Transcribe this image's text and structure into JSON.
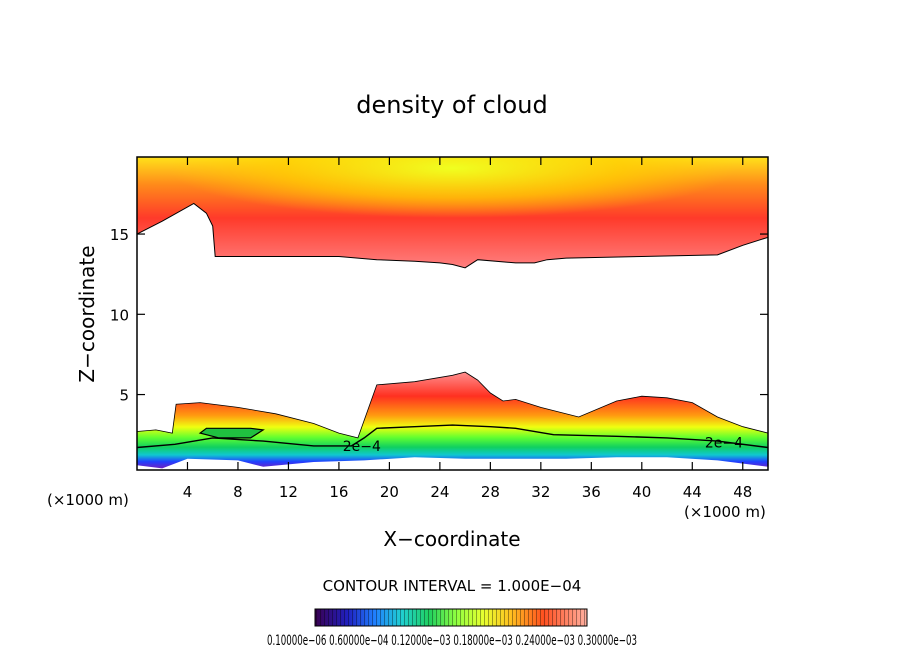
{
  "chart_data": {
    "type": "heatmap",
    "title": "density of cloud",
    "xlabel": "X−coordinate",
    "ylabel": "Z−coordinate",
    "x_unit_left": "(×1000 m)",
    "x_unit_right": "(×1000 m)",
    "xlim": [
      0,
      50
    ],
    "ylim": [
      0.3,
      19.8
    ],
    "x_ticks": [
      4,
      8,
      12,
      16,
      20,
      24,
      28,
      32,
      36,
      40,
      44,
      48
    ],
    "y_ticks": [
      5,
      10,
      15
    ],
    "contour_interval_text": "CONTOUR INTERVAL = 1.000E−04",
    "contour_labels": [
      {
        "text": "2e−4",
        "x": 16.3,
        "y": 1.8
      },
      {
        "text": "2e−4",
        "x": 45.0,
        "y": 2.0
      }
    ],
    "colorbar_labels_text": "0.10000e−06   0.60000e−04   0.12000e−03   0.18000e−03   0.24000e−03   0.30000e−03",
    "upper_cloud": {
      "top": [
        [
          0,
          19.8
        ],
        [
          50,
          19.8
        ]
      ],
      "bottom": [
        [
          0,
          15
        ],
        [
          2,
          15.8
        ],
        [
          4.5,
          16.9
        ],
        [
          5.5,
          16.3
        ],
        [
          6,
          15.5
        ],
        [
          6.2,
          13.6
        ],
        [
          10,
          13.6
        ],
        [
          16,
          13.6
        ],
        [
          19,
          13.4
        ],
        [
          22,
          13.3
        ],
        [
          24,
          13.2
        ],
        [
          25,
          13.1
        ],
        [
          26,
          12.9
        ],
        [
          27,
          13.4
        ],
        [
          30,
          13.2
        ],
        [
          31.5,
          13.2
        ],
        [
          32.5,
          13.4
        ],
        [
          34,
          13.5
        ],
        [
          40,
          13.6
        ],
        [
          46,
          13.7
        ],
        [
          48,
          14.3
        ],
        [
          50,
          14.8
        ]
      ]
    },
    "lower_cloud": {
      "top": [
        [
          0,
          2.7
        ],
        [
          1.5,
          2.8
        ],
        [
          2.8,
          2.6
        ],
        [
          3.1,
          4.4
        ],
        [
          5,
          4.5
        ],
        [
          8,
          4.2
        ],
        [
          11,
          3.8
        ],
        [
          14,
          3.2
        ],
        [
          16,
          2.6
        ],
        [
          17.5,
          2.3
        ],
        [
          19,
          5.6
        ],
        [
          22,
          5.8
        ],
        [
          25,
          6.2
        ],
        [
          26,
          6.4
        ],
        [
          27,
          5.9
        ],
        [
          28,
          5.1
        ],
        [
          29,
          4.6
        ],
        [
          30,
          4.7
        ],
        [
          32,
          4.2
        ],
        [
          35,
          3.6
        ],
        [
          38,
          4.6
        ],
        [
          40,
          4.9
        ],
        [
          42,
          4.8
        ],
        [
          44,
          4.5
        ],
        [
          46,
          3.6
        ],
        [
          48,
          3.0
        ],
        [
          50,
          2.6
        ]
      ],
      "bottom": [
        [
          0,
          0.6
        ],
        [
          2,
          0.4
        ],
        [
          4,
          1.0
        ],
        [
          8,
          0.9
        ],
        [
          10,
          0.5
        ],
        [
          14,
          0.8
        ],
        [
          18,
          0.9
        ],
        [
          22,
          1.1
        ],
        [
          26,
          1.0
        ],
        [
          30,
          1.0
        ],
        [
          34,
          1.0
        ],
        [
          38,
          1.1
        ],
        [
          42,
          1.1
        ],
        [
          46,
          0.9
        ],
        [
          50,
          0.5
        ]
      ]
    },
    "inner_contour": [
      [
        5,
        2.6
      ],
      [
        5.5,
        2.9
      ],
      [
        9,
        2.9
      ],
      [
        10,
        2.8
      ],
      [
        9,
        2.3
      ],
      [
        6.5,
        2.3
      ],
      [
        5,
        2.6
      ]
    ],
    "contour_2e4": [
      [
        0,
        1.7
      ],
      [
        3,
        1.9
      ],
      [
        6,
        2.3
      ],
      [
        10,
        2.1
      ],
      [
        14,
        1.8
      ],
      [
        17,
        1.8
      ],
      [
        18,
        2.3
      ],
      [
        19,
        2.9
      ],
      [
        22,
        3.0
      ],
      [
        25,
        3.1
      ],
      [
        28,
        3.0
      ],
      [
        30,
        2.9
      ],
      [
        33,
        2.5
      ],
      [
        38,
        2.4
      ],
      [
        42,
        2.3
      ],
      [
        46,
        2.1
      ],
      [
        50,
        1.7
      ]
    ]
  }
}
